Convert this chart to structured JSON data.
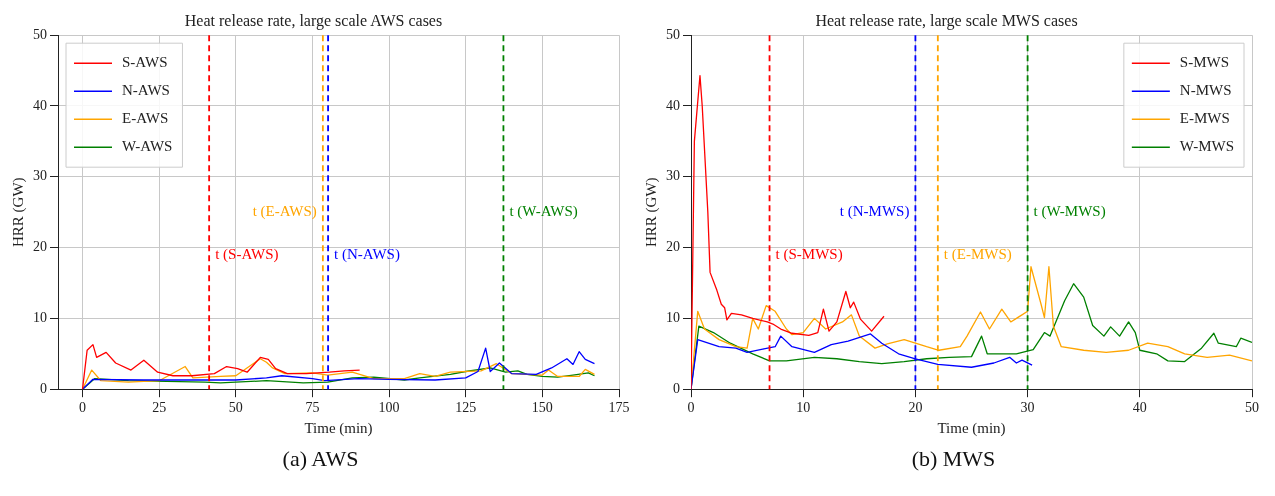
{
  "chart_data": [
    {
      "type": "line",
      "title": "Heat release rate, large scale AWS cases",
      "xlabel": "Time (min)",
      "ylabel": "HRR (GW)",
      "xlim": [
        -8,
        175
      ],
      "xticks": [
        0,
        25,
        50,
        75,
        100,
        125,
        150,
        175
      ],
      "ylim": [
        0,
        50
      ],
      "yticks": [
        0,
        10,
        20,
        30,
        40,
        50
      ],
      "grid": true,
      "legend": "top left",
      "line_style": "solid",
      "annotations": [
        "(a) AWS"
      ],
      "ref_lines": [
        {
          "axis": "x",
          "value": 41.3,
          "label": "t (S-AWS)",
          "color": "#ff0000",
          "line_style": "dashed"
        },
        {
          "axis": "x",
          "value": 78.4,
          "label": "t (E-AWS)",
          "color": "#ffa500",
          "line_style": "dashed"
        },
        {
          "axis": "x",
          "value": 80.1,
          "label": "t (N-AWS)",
          "color": "#0000ff",
          "line_style": "dashed"
        },
        {
          "axis": "x",
          "value": 137.3,
          "label": "t (W-AWS)",
          "color": "#008000",
          "line_style": "dashed"
        }
      ],
      "series": [
        {
          "name": "S-AWS",
          "color": "#ff0000",
          "x": [
            0,
            1.5,
            3.4,
            4.6,
            7.7,
            10.8,
            15.8,
            20,
            24.5,
            29.5,
            35.7,
            43,
            47,
            50.6,
            53.7,
            58,
            60.6,
            63,
            66.8,
            73,
            80.5,
            85.4,
            90.4
          ],
          "values": [
            0,
            5.5,
            6.3,
            4.5,
            5.2,
            3.7,
            2.7,
            4.1,
            2.4,
            1.9,
            1.9,
            2.2,
            3.2,
            2.9,
            2.4,
            4.5,
            4.2,
            2.9,
            2.2,
            2.2,
            2.4,
            2.6,
            2.7
          ]
        },
        {
          "name": "N-AWS",
          "color": "#0000ff",
          "x": [
            0,
            3.4,
            20,
            50,
            60,
            65,
            75,
            79,
            90,
            100,
            115,
            125,
            129,
            131.5,
            133,
            136,
            140,
            148,
            153,
            158,
            160,
            162,
            164,
            167
          ],
          "values": [
            0,
            1.4,
            1.3,
            1.3,
            1.6,
            1.9,
            1.5,
            1.2,
            1.5,
            1.4,
            1.3,
            1.6,
            2.5,
            5.8,
            2.5,
            3.7,
            2.2,
            2.1,
            3.0,
            4.3,
            3.5,
            5.3,
            4.2,
            3.6
          ]
        },
        {
          "name": "E-AWS",
          "color": "#ffa500",
          "x": [
            0,
            3,
            6,
            15,
            25,
            33.5,
            36,
            45,
            50,
            58,
            60,
            62,
            66,
            75,
            80,
            88,
            95,
            105,
            110,
            115,
            120,
            130,
            135,
            140,
            150,
            152,
            155,
            162,
            164,
            167
          ],
          "values": [
            0,
            2.7,
            1.2,
            1.0,
            1.2,
            3.2,
            1.6,
            1.8,
            1.9,
            4.3,
            3.8,
            3.0,
            2.2,
            2.3,
            2.0,
            2.4,
            1.5,
            1.5,
            2.2,
            1.8,
            2.4,
            2.6,
            3.6,
            2.2,
            2.0,
            2.7,
            1.8,
            1.8,
            2.8,
            2.1
          ]
        },
        {
          "name": "W-AWS",
          "color": "#008000",
          "x": [
            0,
            4,
            15,
            40,
            45,
            60,
            72,
            80,
            88,
            95,
            105,
            110,
            120,
            125,
            133,
            138,
            142,
            145,
            150,
            155,
            160,
            165,
            167
          ],
          "values": [
            0,
            1.5,
            1.2,
            1.0,
            0.9,
            1.2,
            0.9,
            1.0,
            1.6,
            1.7,
            1.3,
            1.6,
            2.1,
            2.5,
            3.0,
            2.4,
            2.6,
            2.1,
            1.8,
            1.7,
            2.0,
            2.3,
            1.9
          ]
        }
      ]
    },
    {
      "type": "line",
      "title": "Heat release rate, large scale MWS cases",
      "xlabel": "Time (min)",
      "ylabel": "HRR (GW)",
      "xlim": [
        0,
        50
      ],
      "xticks": [
        0,
        10,
        20,
        30,
        40,
        50
      ],
      "ylim": [
        0,
        50
      ],
      "yticks": [
        0,
        10,
        20,
        30,
        40,
        50
      ],
      "grid": true,
      "legend": "top right",
      "line_style": "solid",
      "annotations": [
        "(b) MWS"
      ],
      "ref_lines": [
        {
          "axis": "x",
          "value": 7,
          "label": "t (S-MWS)",
          "color": "#ff0000",
          "line_style": "dashed"
        },
        {
          "axis": "x",
          "value": 20,
          "label": "t (N-MWS)",
          "color": "#0000ff",
          "line_style": "dashed"
        },
        {
          "axis": "x",
          "value": 22,
          "label": "t (E-MWS)",
          "color": "#ffa500",
          "line_style": "dashed"
        },
        {
          "axis": "x",
          "value": 30,
          "label": "t (W-MWS)",
          "color": "#008000",
          "line_style": "dashed"
        }
      ],
      "series": [
        {
          "name": "S-MWS",
          "color": "#ff0000",
          "x": [
            0,
            0.3,
            0.8,
            1.0,
            1.5,
            1.7,
            2.3,
            2.7,
            3.0,
            3.2,
            3.6,
            4.5,
            5.5,
            6.8,
            7.3,
            8.0,
            9.0,
            10.5,
            11.3,
            11.8,
            12.3,
            13,
            13.8,
            14.2,
            14.5,
            15.1,
            16.1,
            17.2
          ],
          "values": [
            0,
            35,
            44.3,
            40,
            25,
            16.5,
            14,
            12,
            11.5,
            9.8,
            10.7,
            10.5,
            10,
            9.5,
            9.2,
            8.5,
            7.9,
            7.6,
            8.0,
            11.3,
            8.2,
            9.5,
            13.8,
            11.5,
            12.3,
            9.9,
            8.2,
            10.3
          ]
        },
        {
          "name": "N-MWS",
          "color": "#0000ff",
          "x": [
            0,
            0.6,
            2.5,
            4,
            5,
            6.5,
            7.5,
            8,
            9,
            11,
            12.5,
            14,
            16,
            17,
            18.5,
            20,
            22,
            25,
            27,
            28.4,
            29,
            29.5,
            30.4
          ],
          "values": [
            0,
            7,
            6,
            5.8,
            5.2,
            5.7,
            6.0,
            7.5,
            6,
            5.2,
            6.3,
            6.8,
            7.8,
            6.5,
            5,
            4.3,
            3.5,
            3.1,
            3.7,
            4.5,
            3.7,
            4.1,
            3.4
          ]
        },
        {
          "name": "E-MWS",
          "color": "#ffa500",
          "x": [
            0,
            0.6,
            1.2,
            2.5,
            4,
            5,
            5.5,
            6,
            6.7,
            7.5,
            8.5,
            9,
            10,
            11,
            12,
            13.5,
            14.3,
            15,
            16.4,
            17.5,
            19,
            20,
            21,
            22.1,
            24,
            24.6,
            25.8,
            26.6,
            27.7,
            28.5,
            29.5,
            30,
            30.3,
            31.2,
            31.5,
            31.9,
            32.3,
            33,
            35,
            37,
            39,
            40.7,
            42.5,
            44,
            46,
            48,
            50
          ],
          "values": [
            0,
            11,
            8.5,
            7,
            6,
            5.8,
            10,
            8.5,
            11.8,
            11,
            8.5,
            7.7,
            8,
            10,
            8.5,
            9.5,
            10.5,
            7.5,
            5.8,
            6.4,
            7.0,
            6.5,
            6.0,
            5.5,
            6,
            7.5,
            10.9,
            8.5,
            11.3,
            9.5,
            10.5,
            11,
            17.3,
            12,
            10.1,
            17.3,
            8.9,
            6,
            5.5,
            5.2,
            5.5,
            6.5,
            6.0,
            5,
            4.5,
            4.8,
            4.0
          ]
        },
        {
          "name": "W-MWS",
          "color": "#008000",
          "x": [
            0,
            0.7,
            2,
            3.5,
            5.5,
            7,
            8.5,
            11,
            13,
            15,
            17,
            19,
            21,
            23,
            25,
            25.9,
            26.4,
            29,
            30.5,
            31.5,
            32,
            33.3,
            34.1,
            35,
            35.8,
            36.8,
            37.4,
            38.2,
            39,
            39.6,
            40,
            41.5,
            42.5,
            44,
            45.5,
            46.6,
            47,
            48.6,
            49,
            50
          ],
          "values": [
            0,
            8.9,
            8,
            6.5,
            5,
            4.0,
            4.0,
            4.5,
            4.3,
            3.9,
            3.6,
            3.9,
            4.3,
            4.5,
            4.6,
            7.5,
            5,
            5.0,
            5.6,
            8,
            7.5,
            12.5,
            14.9,
            13,
            9,
            7.5,
            8.8,
            7.5,
            9.5,
            8.0,
            5.5,
            5,
            4,
            3.9,
            5.8,
            7.9,
            6.5,
            6,
            7.2,
            6.6
          ]
        }
      ]
    }
  ]
}
